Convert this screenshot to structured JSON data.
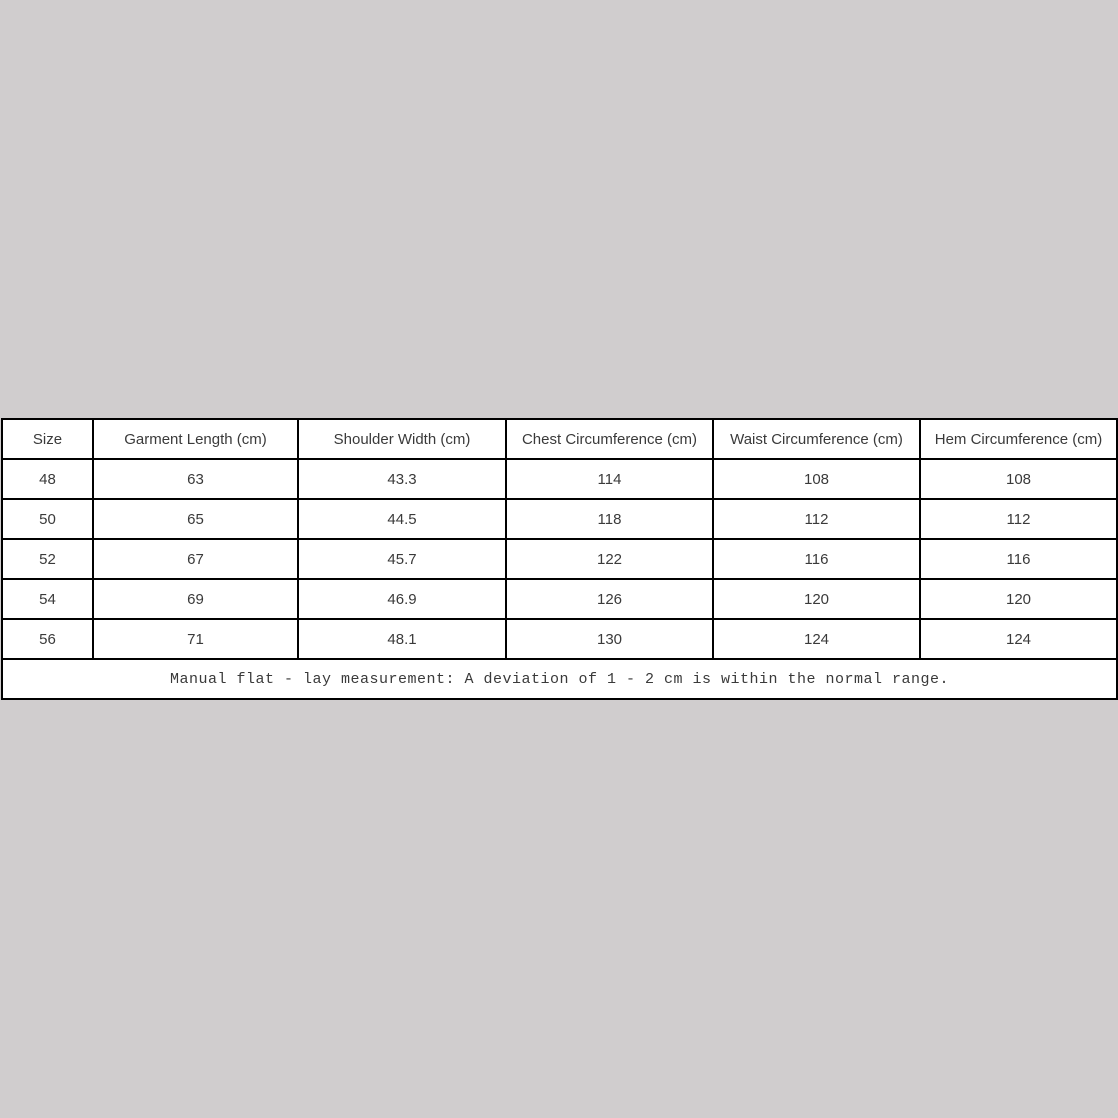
{
  "page": {
    "background_color": "#d0cdce",
    "table_background_color": "#ffffff",
    "table_border_color": "#000000",
    "table_text_color": "#3a3a3a"
  },
  "size_chart": {
    "columns": [
      "Size",
      "Garment Length (cm)",
      "Shoulder Width (cm)",
      "Chest Circumference (cm)",
      "Waist Circumference (cm)",
      "Hem Circumference (cm)"
    ],
    "rows": [
      [
        "48",
        "63",
        "43.3",
        "114",
        "108",
        "108"
      ],
      [
        "50",
        "65",
        "44.5",
        "118",
        "112",
        "112"
      ],
      [
        "52",
        "67",
        "45.7",
        "122",
        "116",
        "116"
      ],
      [
        "54",
        "69",
        "46.9",
        "126",
        "120",
        "120"
      ],
      [
        "56",
        "71",
        "48.1",
        "130",
        "124",
        "124"
      ]
    ],
    "footnote": "Manual flat - lay measurement: A deviation of 1 - 2 cm is within the normal range."
  },
  "chart_data": {
    "type": "table",
    "title": "",
    "columns": [
      "Size",
      "Garment Length (cm)",
      "Shoulder Width (cm)",
      "Chest Circumference (cm)",
      "Waist Circumference (cm)",
      "Hem Circumference (cm)"
    ],
    "rows": [
      {
        "size": 48,
        "garment_length_cm": 63,
        "shoulder_width_cm": 43.3,
        "chest_circumference_cm": 114,
        "waist_circumference_cm": 108,
        "hem_circumference_cm": 108
      },
      {
        "size": 50,
        "garment_length_cm": 65,
        "shoulder_width_cm": 44.5,
        "chest_circumference_cm": 118,
        "waist_circumference_cm": 112,
        "hem_circumference_cm": 112
      },
      {
        "size": 52,
        "garment_length_cm": 67,
        "shoulder_width_cm": 45.7,
        "chest_circumference_cm": 122,
        "waist_circumference_cm": 116,
        "hem_circumference_cm": 116
      },
      {
        "size": 54,
        "garment_length_cm": 69,
        "shoulder_width_cm": 46.9,
        "chest_circumference_cm": 126,
        "waist_circumference_cm": 120,
        "hem_circumference_cm": 120
      },
      {
        "size": 56,
        "garment_length_cm": 71,
        "shoulder_width_cm": 48.1,
        "chest_circumference_cm": 130,
        "waist_circumference_cm": 124,
        "hem_circumference_cm": 124
      }
    ],
    "footnote": "Manual flat - lay measurement: A deviation of 1 - 2 cm is within the normal range."
  }
}
